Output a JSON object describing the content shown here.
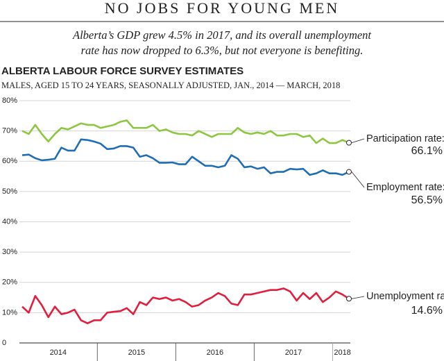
{
  "chart_data": {
    "type": "line",
    "headline": "NO JOBS FOR YOUNG MEN",
    "subtitle": [
      "Alberta’s GDP grew 4.5% in 2017, and its overall unemployment",
      "rate has now dropped to 6.3%, but not everyone is benefiting."
    ],
    "title": "ALBERTA LABOUR FORCE SURVEY ESTIMATES",
    "chart_subtitle": "MALES, AGED 15 TO 24 YEARS, SEASONALLY ADJUSTED, JAN., 2014 — MARCH, 2018",
    "categories": [
      null,
      null,
      null,
      null,
      null,
      null,
      "2014",
      null,
      null,
      null,
      null,
      null,
      null,
      null,
      null,
      null,
      null,
      null,
      "2015",
      null,
      null,
      null,
      null,
      null,
      null,
      null,
      null,
      null,
      null,
      null,
      "2016",
      null,
      null,
      null,
      null,
      null,
      null,
      null,
      null,
      null,
      null,
      null,
      "2017",
      null,
      null,
      null,
      null,
      null,
      null,
      "2018",
      null
    ],
    "ylim": [
      0,
      80
    ],
    "yticks": [
      0,
      {
        "value": 10,
        "label": "10%"
      },
      {
        "value": 20,
        "label": "20%"
      },
      {
        "value": 30,
        "label": "30%"
      },
      {
        "value": 40,
        "label": "40%"
      },
      {
        "value": 50,
        "label": "50%"
      },
      {
        "value": 60,
        "label": "60%"
      },
      {
        "value": 70,
        "label": "70%"
      },
      {
        "value": 80,
        "label": "80%"
      }
    ],
    "grid": true,
    "series": [
      {
        "name": "Participation rate:",
        "color": "#8dc63f",
        "values": [
          70,
          69,
          72,
          69,
          66.5,
          69,
          71,
          70.5,
          71.5,
          72.5,
          72,
          72,
          71,
          71.5,
          72,
          73,
          73.5,
          71,
          71,
          71,
          72,
          70,
          70.5,
          69.5,
          69,
          69,
          68.5,
          70,
          69,
          68,
          69,
          69,
          69,
          71,
          69.5,
          69,
          69.5,
          69,
          70,
          68.5,
          68.5,
          69,
          69,
          68,
          68.5,
          66,
          67.5,
          66,
          66,
          67,
          66.1
        ],
        "value_labels": [
          null,
          null,
          null,
          null,
          null,
          null,
          null,
          null,
          null,
          null,
          null,
          null,
          null,
          null,
          null,
          null,
          null,
          null,
          null,
          null,
          null,
          null,
          null,
          null,
          null,
          null,
          null,
          null,
          null,
          null,
          null,
          null,
          null,
          null,
          null,
          null,
          null,
          null,
          null,
          null,
          null,
          null,
          null,
          null,
          null,
          null,
          null,
          null,
          null,
          null,
          "66.1%"
        ]
      },
      {
        "name": "Employment rate:",
        "color": "#1f6db5",
        "values": [
          62,
          62.2,
          61,
          60.3,
          60.5,
          60.8,
          64.5,
          63.5,
          63.5,
          67.2,
          67,
          66.5,
          65.8,
          64,
          64.2,
          65,
          65,
          64.5,
          61.5,
          62,
          61,
          59.5,
          59.5,
          59.6,
          59,
          59,
          61.5,
          60,
          58.5,
          58.5,
          58,
          58.5,
          62,
          60.8,
          58,
          58.3,
          57.5,
          58,
          56,
          56.5,
          56.5,
          57.5,
          57.3,
          57.5,
          55.5,
          56,
          57,
          56,
          56,
          55.5,
          56.5
        ],
        "value_labels": [
          null,
          null,
          null,
          null,
          null,
          null,
          null,
          null,
          null,
          null,
          null,
          null,
          null,
          null,
          null,
          null,
          null,
          null,
          null,
          null,
          null,
          null,
          null,
          null,
          null,
          null,
          null,
          null,
          null,
          null,
          null,
          null,
          null,
          null,
          null,
          null,
          null,
          null,
          null,
          null,
          null,
          null,
          null,
          null,
          null,
          null,
          null,
          null,
          null,
          null,
          "56.5%"
        ]
      },
      {
        "name": "Unemployment rate:",
        "color": "#e31d3c",
        "values": [
          12,
          10,
          15.5,
          12.5,
          8.5,
          12,
          9.5,
          10,
          11,
          7.5,
          6.5,
          7.5,
          7.5,
          10,
          10.3,
          10.5,
          11.5,
          9.5,
          13.5,
          12.5,
          15,
          14.5,
          15,
          14,
          14.5,
          13.5,
          12,
          12.5,
          14,
          15,
          16.5,
          15.5,
          13,
          12.5,
          16,
          16,
          16.5,
          17,
          17.5,
          17.5,
          18,
          17,
          14,
          16.5,
          14.5,
          16.5,
          13.5,
          15,
          17,
          16,
          14.6
        ],
        "value_labels": [
          null,
          null,
          null,
          null,
          null,
          null,
          null,
          null,
          null,
          null,
          null,
          null,
          null,
          null,
          null,
          null,
          null,
          null,
          null,
          null,
          null,
          null,
          null,
          null,
          null,
          null,
          null,
          null,
          null,
          null,
          null,
          null,
          null,
          null,
          null,
          null,
          null,
          null,
          null,
          null,
          null,
          null,
          null,
          null,
          null,
          null,
          null,
          null,
          null,
          null,
          "14.6%"
        ]
      }
    ]
  }
}
